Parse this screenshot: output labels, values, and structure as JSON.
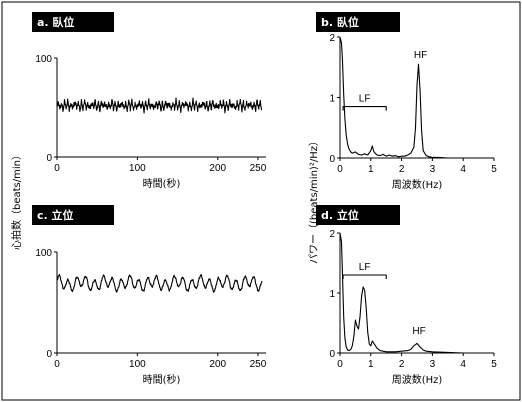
{
  "ylabel_left": "心拍数（beats/min）",
  "ylabel_right": "パワー（(beats/min)²/Hz）",
  "chart_data": [
    {
      "id": "a",
      "type": "line",
      "title": "a. 臥位",
      "xlabel": "時間(秒)",
      "xlim": [
        0,
        260
      ],
      "ylim": [
        0,
        100
      ],
      "xticks": [
        0,
        100,
        200,
        250
      ],
      "yticks": [
        0,
        100
      ],
      "signal": {
        "mean": 52,
        "wobble": 2.5,
        "jitter": 3.5,
        "period": 4.2,
        "ripple": 0.9
      },
      "annotations": []
    },
    {
      "id": "b",
      "type": "line",
      "title": "b. 臥位",
      "xlabel": "周波数(Hz)",
      "xlim": [
        0,
        5
      ],
      "ylim": [
        0,
        2
      ],
      "xticks": [
        0,
        1,
        2,
        3,
        4,
        5
      ],
      "yticks": [
        0,
        1,
        2
      ],
      "x": [
        0,
        0.05,
        0.08,
        0.12,
        0.16,
        0.2,
        0.25,
        0.3,
        0.35,
        0.4,
        0.5,
        0.6,
        0.7,
        0.8,
        0.9,
        1.0,
        1.05,
        1.1,
        1.2,
        1.3,
        1.4,
        1.5,
        1.6,
        1.7,
        1.8,
        1.9,
        2.0,
        2.1,
        2.2,
        2.3,
        2.4,
        2.45,
        2.5,
        2.55,
        2.6,
        2.65,
        2.7,
        2.8,
        2.9,
        3.0,
        3.2,
        3.5,
        4.0,
        4.5,
        5.0
      ],
      "y": [
        2.0,
        1.9,
        1.6,
        1.05,
        0.65,
        0.38,
        0.22,
        0.14,
        0.1,
        0.08,
        0.1,
        0.06,
        0.05,
        0.07,
        0.05,
        0.12,
        0.2,
        0.1,
        0.05,
        0.04,
        0.06,
        0.03,
        0.05,
        0.03,
        0.04,
        0.02,
        0.03,
        0.03,
        0.05,
        0.08,
        0.18,
        0.5,
        1.2,
        1.55,
        1.1,
        0.45,
        0.12,
        0.04,
        0.02,
        0.01,
        0.01,
        0.0,
        0.0,
        0.0,
        0.0
      ],
      "annotations": [
        {
          "label": "LF",
          "type": "bracket",
          "x0": 0.1,
          "x1": 1.5,
          "y": 0.85
        },
        {
          "label": "HF",
          "type": "text",
          "x": 2.4,
          "y": 1.65
        }
      ]
    },
    {
      "id": "c",
      "type": "line",
      "title": "c. 立位",
      "xlabel": "時間(秒)",
      "xlim": [
        0,
        260
      ],
      "ylim": [
        0,
        100
      ],
      "xticks": [
        0,
        100,
        200,
        250
      ],
      "yticks": [
        0,
        100
      ],
      "signal": {
        "mean": 69,
        "wobble": 5.5,
        "jitter": 1.2,
        "period": 11,
        "ripple": 0.3
      },
      "annotations": []
    },
    {
      "id": "d",
      "type": "line",
      "title": "d. 立位",
      "xlabel": "周波数(Hz)",
      "xlim": [
        0,
        5
      ],
      "ylim": [
        0,
        2
      ],
      "xticks": [
        0,
        1,
        2,
        3,
        4,
        5
      ],
      "yticks": [
        0,
        1,
        2
      ],
      "x": [
        0,
        0.05,
        0.08,
        0.12,
        0.16,
        0.2,
        0.25,
        0.3,
        0.35,
        0.4,
        0.45,
        0.5,
        0.55,
        0.6,
        0.65,
        0.7,
        0.75,
        0.8,
        0.85,
        0.9,
        0.95,
        1.0,
        1.05,
        1.1,
        1.2,
        1.3,
        1.5,
        1.8,
        2.0,
        2.2,
        2.3,
        2.4,
        2.5,
        2.6,
        2.7,
        2.8,
        3.0,
        3.5,
        4.0,
        5.0
      ],
      "y": [
        2.0,
        1.85,
        1.3,
        0.6,
        0.25,
        0.1,
        0.05,
        0.04,
        0.06,
        0.12,
        0.28,
        0.55,
        0.45,
        0.4,
        0.6,
        0.95,
        1.1,
        1.05,
        0.75,
        0.35,
        0.15,
        0.12,
        0.2,
        0.16,
        0.08,
        0.04,
        0.02,
        0.02,
        0.03,
        0.04,
        0.06,
        0.12,
        0.16,
        0.1,
        0.05,
        0.03,
        0.02,
        0.01,
        0.0,
        0.0
      ],
      "annotations": [
        {
          "label": "LF",
          "type": "bracket",
          "x0": 0.1,
          "x1": 1.5,
          "y": 1.3
        },
        {
          "label": "HF",
          "type": "text",
          "x": 2.35,
          "y": 0.32
        }
      ]
    }
  ]
}
